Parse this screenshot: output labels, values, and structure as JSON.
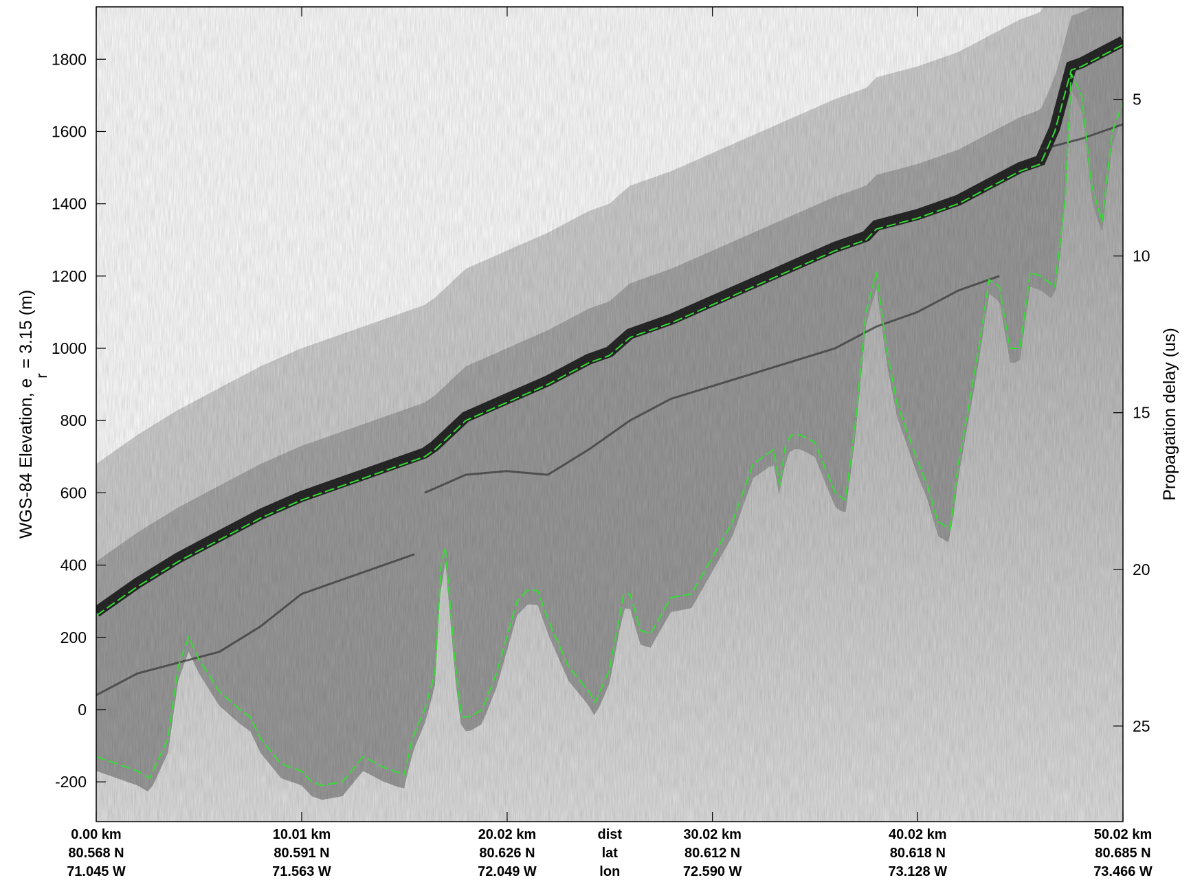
{
  "chart_data": {
    "type": "radargram",
    "ylabel_main": "WGS-84 Elevation, e",
    "ylabel_subscript": "r",
    "ylabel_rest": " = 3.15 (m)",
    "y2label": "Propagation delay (us)",
    "ylim": [
      -310,
      1945
    ],
    "y2lim": [
      2.05,
      28.05
    ],
    "xlim_km": [
      0,
      50.02
    ],
    "yticks": [
      -200,
      0,
      200,
      400,
      600,
      800,
      1000,
      1200,
      1400,
      1600,
      1800
    ],
    "y2ticks": [
      5,
      10,
      15,
      20,
      25
    ],
    "xticks_km": [
      0,
      10.01,
      20.02,
      30.02,
      40.02,
      50.02
    ],
    "xtick_rows": [
      [
        "0.00 km",
        "10.01 km",
        "20.02 km",
        "30.02 km",
        "40.02 km",
        "50.02 km"
      ],
      [
        "80.568 N",
        "80.591 N",
        "80.626 N",
        "80.612 N",
        "80.618 N",
        "80.685 N"
      ],
      [
        "71.045 W",
        "71.563 W",
        "72.049 W",
        "72.590 W",
        "73.128 W",
        "73.466 W"
      ]
    ],
    "row_names": [
      "dist",
      "lat",
      "lon"
    ],
    "image_color": "#000000",
    "surface_color": "#33dd33",
    "ice_surface": {
      "name": "surface",
      "x_km": [
        0,
        2,
        4,
        6,
        8,
        10,
        12,
        14,
        16,
        16.5,
        18,
        20,
        22,
        24,
        25,
        26,
        28,
        30,
        32,
        34,
        36,
        37.5,
        38,
        40,
        42,
        44,
        45,
        46,
        46.7,
        47.5,
        48,
        50.02
      ],
      "elev_m": [
        260,
        340,
        410,
        470,
        530,
        580,
        620,
        660,
        700,
        720,
        800,
        850,
        900,
        960,
        980,
        1030,
        1070,
        1120,
        1170,
        1220,
        1270,
        1300,
        1330,
        1360,
        1400,
        1460,
        1490,
        1510,
        1600,
        1770,
        1780,
        1840
      ]
    },
    "ice_bottom": {
      "name": "bottom",
      "x_km": [
        0,
        1,
        2,
        2.6,
        3.5,
        4,
        4.5,
        5,
        6,
        7,
        7.5,
        8,
        9,
        10,
        10.5,
        11,
        12,
        13,
        14,
        15,
        15.4,
        16,
        16.5,
        16.8,
        17,
        17.5,
        17.8,
        18.2,
        18.8,
        19.5,
        20.5,
        21,
        21.5,
        22,
        23,
        24,
        24.3,
        25,
        25.7,
        26,
        26.5,
        27,
        28,
        29,
        30,
        31,
        32,
        33,
        33.3,
        33.6,
        33.9,
        34.3,
        35,
        36,
        36.5,
        37,
        37.5,
        38,
        38.5,
        39,
        40,
        40.5,
        41,
        41.6,
        42,
        43,
        43.5,
        44,
        44.5,
        45,
        45.5,
        46,
        46.7,
        47.2,
        47.5,
        48,
        48.5,
        49,
        49.5,
        50.02
      ],
      "elev_m": [
        -130,
        -150,
        -170,
        -190,
        -80,
        120,
        200,
        140,
        50,
        0,
        -20,
        -80,
        -150,
        -170,
        -200,
        -210,
        -200,
        -130,
        -160,
        -180,
        -80,
        0,
        100,
        400,
        450,
        120,
        -20,
        -20,
        0,
        100,
        300,
        330,
        330,
        250,
        120,
        50,
        20,
        110,
        320,
        320,
        220,
        210,
        310,
        320,
        420,
        520,
        680,
        720,
        620,
        740,
        760,
        760,
        740,
        600,
        580,
        800,
        1100,
        1210,
        1000,
        850,
        690,
        620,
        520,
        500,
        680,
        1000,
        1190,
        1170,
        1000,
        1000,
        1210,
        1200,
        1170,
        1410,
        1760,
        1700,
        1450,
        1350,
        1600,
        1680
      ]
    },
    "internal_layers": [
      {
        "x_km": [
          0,
          2,
          4,
          6,
          8,
          10,
          12,
          14,
          15.5
        ],
        "elev_m": [
          40,
          100,
          130,
          160,
          230,
          320,
          360,
          400,
          430
        ]
      },
      {
        "x_km": [
          16,
          18,
          20,
          22,
          24,
          26,
          28
        ],
        "elev_m": [
          600,
          650,
          660,
          650,
          720,
          800,
          860
        ]
      },
      {
        "x_km": [
          28,
          32,
          36,
          38,
          40,
          42,
          44
        ],
        "elev_m": [
          860,
          930,
          1000,
          1060,
          1100,
          1160,
          1200
        ]
      },
      {
        "x_km": [
          46,
          48,
          50.02
        ],
        "elev_m": [
          1550,
          1580,
          1620
        ]
      }
    ]
  }
}
